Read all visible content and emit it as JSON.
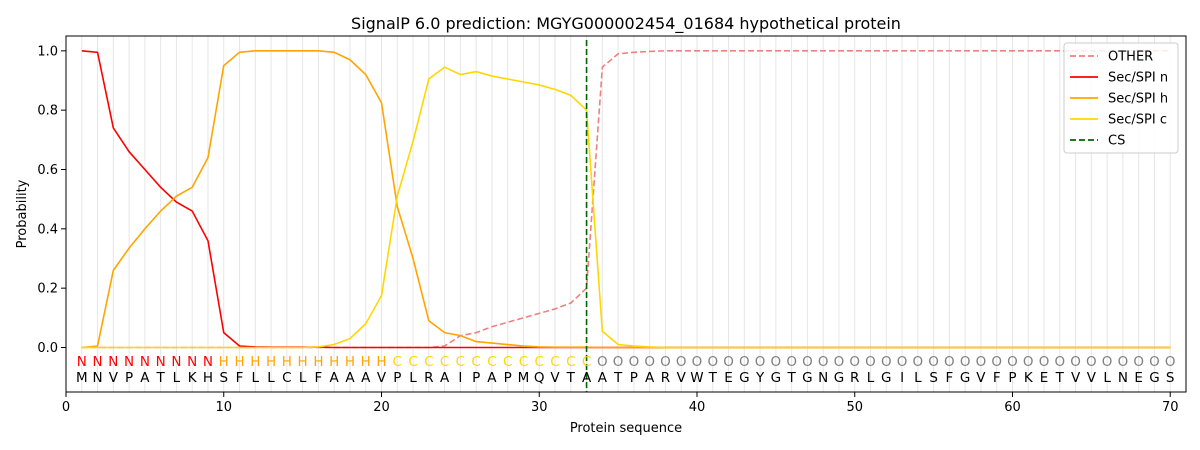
{
  "chart_data": {
    "type": "line",
    "title": "SignalP 6.0 prediction: MGYG000002454_01684 hypothetical protein",
    "xlabel": "Protein sequence",
    "ylabel": "Probability",
    "xlim": [
      0,
      71
    ],
    "ylim": [
      -0.15,
      1.05
    ],
    "x_ticks": [
      0,
      10,
      20,
      30,
      40,
      50,
      60,
      70
    ],
    "y_ticks": [
      0.0,
      0.2,
      0.4,
      0.6,
      0.8,
      1.0
    ],
    "x_tick_labels": [
      "0",
      "10",
      "20",
      "30",
      "40",
      "50",
      "60",
      "70"
    ],
    "y_tick_labels": [
      "0.0",
      "0.2",
      "0.4",
      "0.6",
      "0.8",
      "1.0"
    ],
    "legend_position": "top-right",
    "grid": "vertical lines at each residue",
    "sequence": [
      "M",
      "N",
      "V",
      "P",
      "A",
      "T",
      "L",
      "K",
      "H",
      "S",
      "F",
      "L",
      "L",
      "C",
      "L",
      "F",
      "A",
      "A",
      "A",
      "V",
      "P",
      "L",
      "R",
      "A",
      "I",
      "P",
      "A",
      "P",
      "M",
      "Q",
      "V",
      "T",
      "A",
      "A",
      "T",
      "P",
      "A",
      "R",
      "V",
      "W",
      "T",
      "E",
      "G",
      "Y",
      "G",
      "T",
      "G",
      "N",
      "G",
      "R",
      "L",
      "G",
      "I",
      "L",
      "S",
      "F",
      "G",
      "V",
      "F",
      "P",
      "K",
      "E",
      "T",
      "V",
      "V",
      "L",
      "N",
      "E",
      "G",
      "S"
    ],
    "labels": [
      "N",
      "N",
      "N",
      "N",
      "N",
      "N",
      "N",
      "N",
      "N",
      "H",
      "H",
      "H",
      "H",
      "H",
      "H",
      "H",
      "H",
      "H",
      "H",
      "H",
      "C",
      "C",
      "C",
      "C",
      "C",
      "C",
      "C",
      "C",
      "C",
      "C",
      "C",
      "C",
      "C",
      "O",
      "O",
      "O",
      "O",
      "O",
      "O",
      "O",
      "O",
      "O",
      "O",
      "O",
      "O",
      "O",
      "O",
      "O",
      "O",
      "O",
      "O",
      "O",
      "O",
      "O",
      "O",
      "O",
      "O",
      "O",
      "O",
      "O",
      "O",
      "O",
      "O",
      "O",
      "O",
      "O",
      "O",
      "O",
      "O",
      "O"
    ],
    "label_colors": {
      "N": "#ff0000",
      "H": "#ffa500",
      "C": "#ffd700",
      "O": "#808080"
    },
    "cs_position": 33,
    "series": [
      {
        "name": "OTHER",
        "color": "#f08080",
        "dash": true,
        "values": [
          0,
          0,
          0,
          0,
          0,
          0,
          0,
          0,
          0,
          0,
          0,
          0,
          0,
          0,
          0,
          0,
          0,
          0,
          0,
          0,
          0,
          0,
          0,
          0.005,
          0.04,
          0.05,
          0.07,
          0.085,
          0.1,
          0.115,
          0.13,
          0.15,
          0.2,
          0.945,
          0.99,
          0.995,
          0.998,
          1,
          1,
          1,
          1,
          1,
          1,
          1,
          1,
          1,
          1,
          1,
          1,
          1,
          1,
          1,
          1,
          1,
          1,
          1,
          1,
          1,
          1,
          1,
          1,
          1,
          1,
          1,
          1,
          1,
          1,
          1,
          1,
          1
        ]
      },
      {
        "name": "Sec/SPI n",
        "color": "#ff0000",
        "dash": false,
        "values": [
          1.0,
          0.995,
          0.74,
          0.66,
          0.6,
          0.54,
          0.49,
          0.46,
          0.36,
          0.05,
          0.005,
          0.002,
          0.001,
          0.001,
          0.001,
          0.001,
          0,
          0,
          0,
          0,
          0,
          0,
          0,
          0,
          0,
          0,
          0,
          0,
          0,
          0,
          0,
          0,
          0,
          0,
          0,
          0,
          0,
          0,
          0,
          0,
          0,
          0,
          0,
          0,
          0,
          0,
          0,
          0,
          0,
          0,
          0,
          0,
          0,
          0,
          0,
          0,
          0,
          0,
          0,
          0,
          0,
          0,
          0,
          0,
          0,
          0,
          0,
          0,
          0,
          0
        ]
      },
      {
        "name": "Sec/SPI h",
        "color": "#ffa500",
        "dash": false,
        "values": [
          0.0,
          0.005,
          0.26,
          0.335,
          0.4,
          0.46,
          0.51,
          0.54,
          0.64,
          0.95,
          0.995,
          1.0,
          1.0,
          1.0,
          1.0,
          1.0,
          0.995,
          0.97,
          0.92,
          0.825,
          0.475,
          0.3,
          0.09,
          0.05,
          0.04,
          0.02,
          0.015,
          0.01,
          0.005,
          0.002,
          0.001,
          0.001,
          0.001,
          0,
          0,
          0,
          0,
          0,
          0,
          0,
          0,
          0,
          0,
          0,
          0,
          0,
          0,
          0,
          0,
          0,
          0,
          0,
          0,
          0,
          0,
          0,
          0,
          0,
          0,
          0,
          0,
          0,
          0,
          0,
          0,
          0,
          0,
          0,
          0,
          0
        ]
      },
      {
        "name": "Sec/SPI c",
        "color": "#ffd700",
        "dash": false,
        "values": [
          0,
          0,
          0,
          0,
          0,
          0,
          0,
          0,
          0,
          0,
          0,
          0,
          0,
          0,
          0,
          0.002,
          0.01,
          0.03,
          0.08,
          0.175,
          0.51,
          0.695,
          0.905,
          0.945,
          0.92,
          0.93,
          0.915,
          0.905,
          0.895,
          0.885,
          0.87,
          0.85,
          0.8,
          0.055,
          0.01,
          0.005,
          0.002,
          0,
          0,
          0,
          0,
          0,
          0,
          0,
          0,
          0,
          0,
          0,
          0,
          0,
          0,
          0,
          0,
          0,
          0,
          0,
          0,
          0,
          0,
          0,
          0,
          0,
          0,
          0,
          0,
          0,
          0,
          0,
          0,
          0
        ]
      }
    ],
    "cs_series": {
      "name": "CS",
      "color": "#006400"
    }
  }
}
